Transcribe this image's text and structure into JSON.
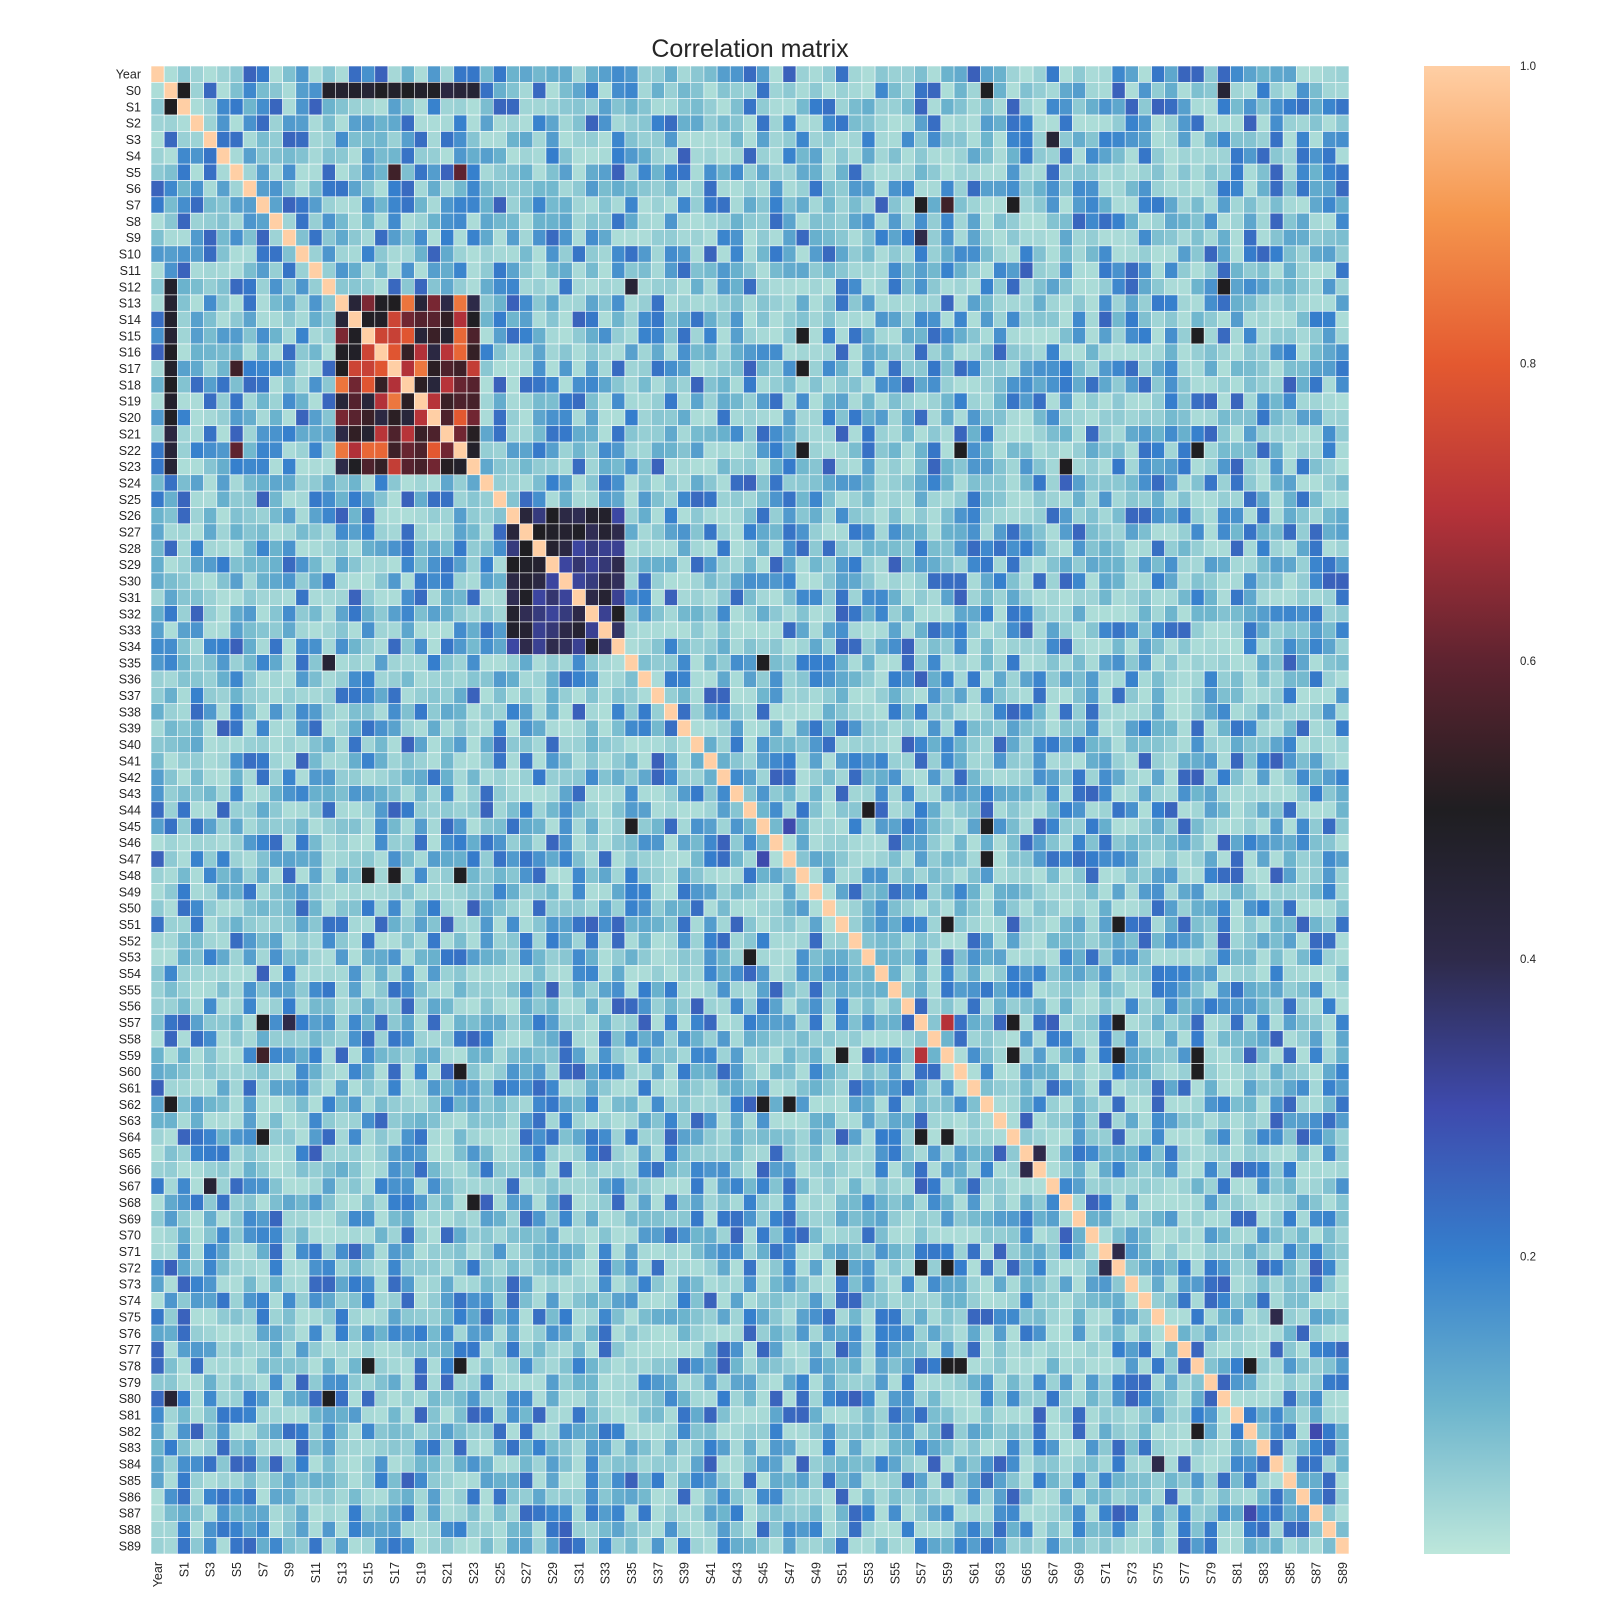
{
  "chart_data": {
    "type": "heatmap",
    "title": "Correlation matrix",
    "variables": [
      "Year",
      "S0",
      "S1",
      "S2",
      "S3",
      "S4",
      "S5",
      "S6",
      "S7",
      "S8",
      "S9",
      "S10",
      "S11",
      "S12",
      "S13",
      "S14",
      "S15",
      "S16",
      "S17",
      "S18",
      "S19",
      "S20",
      "S21",
      "S22",
      "S23",
      "S24",
      "S25",
      "S26",
      "S27",
      "S28",
      "S29",
      "S30",
      "S31",
      "S32",
      "S33",
      "S34",
      "S35",
      "S36",
      "S37",
      "S38",
      "S39",
      "S40",
      "S41",
      "S42",
      "S43",
      "S44",
      "S45",
      "S46",
      "S47",
      "S48",
      "S49",
      "S50",
      "S51",
      "S52",
      "S53",
      "S54",
      "S55",
      "S56",
      "S57",
      "S58",
      "S59",
      "S60",
      "S61",
      "S62",
      "S63",
      "S64",
      "S65",
      "S66",
      "S67",
      "S68",
      "S69",
      "S70",
      "S71",
      "S72",
      "S73",
      "S74",
      "S75",
      "S76",
      "S77",
      "S78",
      "S79",
      "S80",
      "S81",
      "S82",
      "S83",
      "S84",
      "S85",
      "S86",
      "S87",
      "S88",
      "S89"
    ],
    "x_tick_labels": [
      "Year",
      "S1",
      "S3",
      "S5",
      "S7",
      "S9",
      "S11",
      "S13",
      "S15",
      "S17",
      "S19",
      "S21",
      "S23",
      "S25",
      "S27",
      "S29",
      "S31",
      "S33",
      "S35",
      "S37",
      "S39",
      "S41",
      "S43",
      "S45",
      "S47",
      "S49",
      "S51",
      "S53",
      "S55",
      "S57",
      "S59",
      "S61",
      "S63",
      "S65",
      "S67",
      "S69",
      "S71",
      "S73",
      "S75",
      "S77",
      "S79",
      "S81",
      "S83",
      "S85",
      "S87",
      "S89"
    ],
    "y_tick_labels": [
      "Year",
      "S0",
      "S1",
      "S2",
      "S3",
      "S4",
      "S5",
      "S6",
      "S7",
      "S8",
      "S9",
      "S10",
      "S11",
      "S12",
      "S13",
      "S14",
      "S15",
      "S16",
      "S17",
      "S18",
      "S19",
      "S20",
      "S21",
      "S22",
      "S23",
      "S24",
      "S25",
      "S26",
      "S27",
      "S28",
      "S29",
      "S30",
      "S31",
      "S32",
      "S33",
      "S34",
      "S35",
      "S36",
      "S37",
      "S38",
      "S39",
      "S40",
      "S41",
      "S42",
      "S43",
      "S44",
      "S45",
      "S46",
      "S47",
      "S48",
      "S49",
      "S50",
      "S51",
      "S52",
      "S53",
      "S54",
      "S55",
      "S56",
      "S57",
      "S58",
      "S59",
      "S60",
      "S61",
      "S62",
      "S63",
      "S64",
      "S65",
      "S66",
      "S67",
      "S68",
      "S69",
      "S70",
      "S71",
      "S72",
      "S73",
      "S74",
      "S75",
      "S76",
      "S77",
      "S78",
      "S79",
      "S80",
      "S81",
      "S82",
      "S83",
      "S84",
      "S85",
      "S86",
      "S87",
      "S88",
      "S89"
    ],
    "colorbar": {
      "range": [
        0.0,
        1.0
      ],
      "ticks": [
        0.2,
        0.4,
        0.6,
        0.8,
        1.0
      ],
      "tick_labels": [
        "0.2",
        "0.4",
        "0.6",
        "0.8",
        "1.0"
      ],
      "colormap": "icefire",
      "colors": [
        "#bde7db",
        "#6cb4cd",
        "#357fcd",
        "#3e4aad",
        "#2e2a4a",
        "#1f1e21",
        "#5e2330",
        "#b53239",
        "#e45930",
        "#f5964d",
        "#ffcfa5"
      ]
    },
    "diagonal": 1.0,
    "blocks": [
      {
        "rows": [
          "S13",
          "S23"
        ],
        "cols": [
          "S13",
          "S23"
        ],
        "value_range": [
          0.4,
          0.85
        ]
      },
      {
        "rows": [
          "S26",
          "S34"
        ],
        "cols": [
          "S26",
          "S34"
        ],
        "value_range": [
          0.3,
          0.5
        ]
      },
      {
        "rows": [
          "S12",
          "S23"
        ],
        "cols": [
          "S0",
          "S0"
        ],
        "value_range": [
          0.4,
          0.5
        ]
      }
    ],
    "strong_pairs": [
      {
        "a": "S0",
        "b": "S1",
        "value": 0.5
      },
      {
        "a": "S0",
        "b": "S62",
        "value": 0.5
      },
      {
        "a": "S0",
        "b": "S80",
        "value": 0.45
      },
      {
        "a": "S12",
        "b": "S80",
        "value": 0.5
      },
      {
        "a": "S3",
        "b": "S67",
        "value": 0.45
      },
      {
        "a": "S5",
        "b": "S22",
        "value": 0.6
      },
      {
        "a": "S5",
        "b": "S17",
        "value": 0.55
      },
      {
        "a": "S7",
        "b": "S57",
        "value": 0.5
      },
      {
        "a": "S7",
        "b": "S59",
        "value": 0.55
      },
      {
        "a": "S7",
        "b": "S64",
        "value": 0.5
      },
      {
        "a": "S9",
        "b": "S57",
        "value": 0.4
      },
      {
        "a": "S15",
        "b": "S48",
        "value": 0.5
      },
      {
        "a": "S17",
        "b": "S48",
        "value": 0.5
      },
      {
        "a": "S22",
        "b": "S48",
        "value": 0.5
      },
      {
        "a": "S22",
        "b": "S60",
        "value": 0.5
      },
      {
        "a": "S23",
        "b": "S68",
        "value": 0.5
      },
      {
        "a": "S22",
        "b": "S78",
        "value": 0.5
      },
      {
        "a": "S35",
        "b": "S45",
        "value": 0.5
      },
      {
        "a": "S44",
        "b": "S53",
        "value": 0.5
      },
      {
        "a": "S45",
        "b": "S62",
        "value": 0.5
      },
      {
        "a": "S47",
        "b": "S62",
        "value": 0.5
      },
      {
        "a": "S51",
        "b": "S59",
        "value": 0.5
      },
      {
        "a": "S51",
        "b": "S72",
        "value": 0.5
      },
      {
        "a": "S57",
        "b": "S59",
        "value": 0.7
      },
      {
        "a": "S57",
        "b": "S64",
        "value": 0.5
      },
      {
        "a": "S57",
        "b": "S72",
        "value": 0.5
      },
      {
        "a": "S59",
        "b": "S64",
        "value": 0.5
      },
      {
        "a": "S59",
        "b": "S72",
        "value": 0.5
      },
      {
        "a": "S59",
        "b": "S78",
        "value": 0.5
      },
      {
        "a": "S12",
        "b": "S35",
        "value": 0.45
      },
      {
        "a": "S62",
        "b": "S45",
        "value": 0.5
      },
      {
        "a": "S60",
        "b": "S78",
        "value": 0.5
      },
      {
        "a": "S78",
        "b": "S82",
        "value": 0.5
      },
      {
        "a": "S15",
        "b": "S78",
        "value": 0.5
      },
      {
        "a": "S65",
        "b": "S66",
        "value": 0.4
      },
      {
        "a": "S47",
        "b": "S45",
        "value": 0.3
      },
      {
        "a": "S84",
        "b": "S75",
        "value": 0.4
      },
      {
        "a": "S82",
        "b": "S87",
        "value": 0.3
      },
      {
        "a": "S71",
        "b": "S72",
        "value": 0.4
      }
    ]
  }
}
